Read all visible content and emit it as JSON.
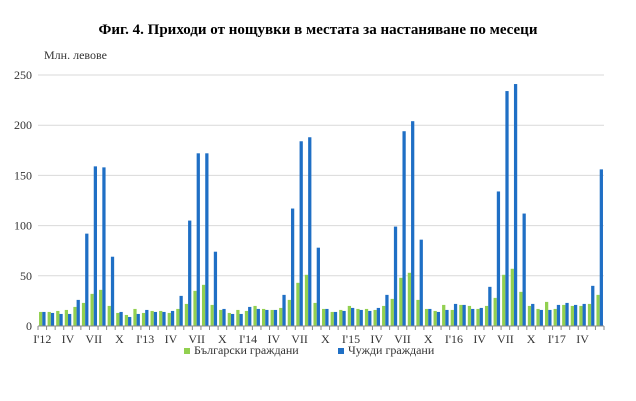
{
  "chart_data": {
    "type": "bar",
    "title": "Фиг. 4. Приходи от нощувки в местата за настаняване по месеци",
    "ylabel": "Млн. левове",
    "xlabel": "",
    "ylim": [
      0,
      250
    ],
    "yticks": [
      0,
      50,
      100,
      150,
      200,
      250
    ],
    "grid": true,
    "legend_position": "bottom",
    "categories": [
      "I'12",
      "II",
      "III",
      "IV",
      "V",
      "VI",
      "VII",
      "VIII",
      "IX",
      "X",
      "XI",
      "XII",
      "I'13",
      "II",
      "III",
      "IV",
      "V",
      "VI",
      "VII",
      "VIII",
      "IX",
      "X",
      "XI",
      "XII",
      "I'14",
      "II",
      "III",
      "IV",
      "V",
      "VI",
      "VII",
      "VIII",
      "IX",
      "X",
      "XI",
      "XII",
      "I'15",
      "II",
      "III",
      "IV",
      "V",
      "VI",
      "VII",
      "VIII",
      "IX",
      "X",
      "XI",
      "XII",
      "I'16",
      "II",
      "III",
      "IV",
      "V",
      "VI",
      "VII",
      "VIII",
      "IX",
      "X",
      "XI",
      "XII",
      "I'17",
      "II",
      "III",
      "IV",
      "V",
      "VI"
    ],
    "tick_labels": [
      {
        "index": 0,
        "label": "I'12"
      },
      {
        "index": 3,
        "label": "IV"
      },
      {
        "index": 6,
        "label": "VII"
      },
      {
        "index": 9,
        "label": "X"
      },
      {
        "index": 12,
        "label": "I'13"
      },
      {
        "index": 15,
        "label": "IV"
      },
      {
        "index": 18,
        "label": "VII"
      },
      {
        "index": 21,
        "label": "X"
      },
      {
        "index": 24,
        "label": "I'14"
      },
      {
        "index": 27,
        "label": "IV"
      },
      {
        "index": 30,
        "label": "VII"
      },
      {
        "index": 33,
        "label": "X"
      },
      {
        "index": 36,
        "label": "I'15"
      },
      {
        "index": 39,
        "label": "IV"
      },
      {
        "index": 42,
        "label": "VII"
      },
      {
        "index": 45,
        "label": "X"
      },
      {
        "index": 48,
        "label": "I'16"
      },
      {
        "index": 51,
        "label": "IV"
      },
      {
        "index": 54,
        "label": "VII"
      },
      {
        "index": 57,
        "label": "X"
      },
      {
        "index": 60,
        "label": "I'17"
      },
      {
        "index": 63,
        "label": "IV"
      }
    ],
    "series": [
      {
        "name": "Български граждани",
        "color": "#92d050",
        "values": [
          14,
          14,
          15,
          16,
          19,
          23,
          32,
          36,
          20,
          13,
          11,
          17,
          13,
          15,
          15,
          13,
          17,
          22,
          35,
          41,
          21,
          16,
          13,
          16,
          15,
          20,
          17,
          16,
          18,
          26,
          43,
          51,
          23,
          17,
          14,
          16,
          20,
          17,
          17,
          16,
          20,
          27,
          48,
          53,
          26,
          17,
          15,
          21,
          16,
          21,
          20,
          17,
          20,
          28,
          51,
          57,
          34,
          20,
          17,
          24,
          17,
          21,
          20,
          20,
          22,
          31
        ]
      },
      {
        "name": "Чужди граждани",
        "color": "#1f6fc5",
        "values": [
          14,
          13,
          12,
          12,
          26,
          92,
          159,
          158,
          69,
          14,
          9,
          12,
          16,
          14,
          14,
          15,
          30,
          105,
          172,
          172,
          74,
          17,
          12,
          12,
          19,
          17,
          16,
          16,
          31,
          117,
          184,
          188,
          78,
          17,
          14,
          15,
          18,
          16,
          15,
          18,
          31,
          99,
          194,
          204,
          86,
          17,
          14,
          16,
          22,
          21,
          17,
          18,
          39,
          134,
          234,
          241,
          112,
          22,
          16,
          16,
          21,
          23,
          21,
          22,
          40,
          156
        ]
      }
    ]
  }
}
